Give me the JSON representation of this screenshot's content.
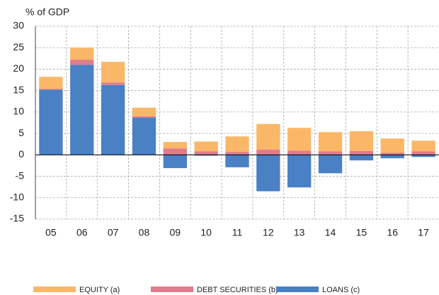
{
  "chart_data": {
    "type": "bar",
    "stacked": true,
    "y_label": "% of GDP",
    "categories": [
      "05",
      "06",
      "07",
      "08",
      "09",
      "10",
      "11",
      "12",
      "13",
      "14",
      "15",
      "16",
      "17"
    ],
    "series": [
      {
        "name": "LOANS (c)",
        "color": "#4a80c4",
        "values": [
          15.2,
          21,
          16.3,
          8.7,
          -3.1,
          -0.2,
          -2.9,
          -8.5,
          -7.6,
          -4.3,
          -1.3,
          -0.8,
          -0.5
        ]
      },
      {
        "name": "DEBT SECURITIES (b)",
        "color": "#e07c8c",
        "values": [
          0.2,
          1.2,
          0.6,
          0.3,
          1.5,
          0.8,
          0.7,
          1.2,
          1.0,
          0.8,
          0.9,
          0.5,
          0.8
        ]
      },
      {
        "name": "EQUITY (a)",
        "color": "#fbb768",
        "values": [
          2.8,
          2.8,
          4.8,
          2.0,
          1.5,
          2.3,
          3.6,
          6.0,
          5.3,
          4.5,
          4.6,
          3.3,
          2.5
        ]
      }
    ],
    "legend_order": [
      2,
      1,
      0
    ],
    "ylim": [
      -15,
      30
    ],
    "yticks": [
      -15,
      -10,
      -5,
      0,
      5,
      10,
      15,
      20,
      25,
      30
    ],
    "grid": true
  }
}
